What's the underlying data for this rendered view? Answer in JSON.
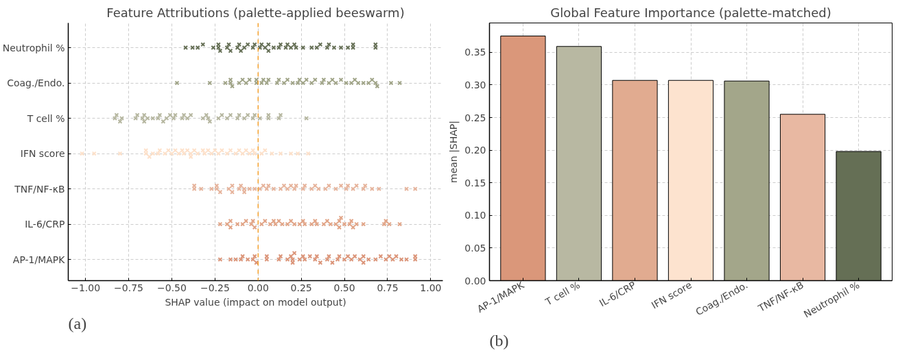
{
  "chart_data": [
    {
      "type": "scatter",
      "title": "Feature Attributions (palette-applied beeswarm)",
      "xlabel": "SHAP value (impact on model output)",
      "annotations": [
        "(a)"
      ],
      "marker": "cross",
      "grid": true,
      "xlim": [
        -1.1,
        1.07
      ],
      "xticks": [
        {
          "value": -1,
          "label": "−1.00"
        },
        {
          "value": -0.75,
          "label": "−0.75"
        },
        {
          "value": -0.5,
          "label": "−0.50"
        },
        {
          "value": -0.25,
          "label": "−0.25"
        },
        {
          "value": 0,
          "label": "0.00"
        },
        {
          "value": 0.25,
          "label": "0.25"
        },
        {
          "value": 0.5,
          "label": "0.50"
        },
        {
          "value": 0.75,
          "label": "0.75"
        },
        {
          "value": 1,
          "label": "1.00"
        }
      ],
      "orientation": "horizontal",
      "categories": [
        "Neutrophil %",
        "Coag./Endo.",
        "T cell %",
        "IFN score",
        "TNF/NF-κB",
        "IL-6/CRP",
        "AP-1/MAPK"
      ],
      "ref_lines": [
        {
          "axis": "x",
          "value": 0,
          "color": "#f5a02a",
          "line_style": "dashed"
        }
      ],
      "series": [
        {
          "color": "#656f55",
          "x": [
            "Neutrophil %",
            "Neutrophil %",
            "Neutrophil %",
            "Neutrophil %",
            "Neutrophil %",
            "Neutrophil %",
            "Neutrophil %",
            "Neutrophil %",
            "Neutrophil %",
            "Neutrophil %",
            "Neutrophil %",
            "Neutrophil %",
            "Neutrophil %",
            "Neutrophil %",
            "Neutrophil %",
            "Neutrophil %",
            "Neutrophil %",
            "Neutrophil %",
            "Neutrophil %",
            "Neutrophil %",
            "Neutrophil %",
            "Neutrophil %",
            "Neutrophil %",
            "Neutrophil %",
            "Neutrophil %",
            "Neutrophil %",
            "Neutrophil %",
            "Neutrophil %",
            "Neutrophil %",
            "Neutrophil %",
            "Neutrophil %",
            "Neutrophil %",
            "Neutrophil %",
            "Neutrophil %",
            "Neutrophil %",
            "Neutrophil %",
            "Neutrophil %",
            "Neutrophil %",
            "Neutrophil %",
            "Neutrophil %",
            "Neutrophil %",
            "Neutrophil %",
            "Neutrophil %",
            "Neutrophil %"
          ],
          "values": [
            -0.42,
            -0.38,
            -0.35,
            -0.32,
            -0.26,
            -0.22,
            -0.18,
            -0.12,
            -0.06,
            -0.03,
            -0.23,
            -0.16,
            -0.11,
            -0.08,
            -0.02,
            -0.23,
            -0.17,
            -0.1,
            0.01,
            0.04,
            0.06,
            0.09,
            0.13,
            0.17,
            0.21,
            0.19,
            0.16,
            0.22,
            0.26,
            0.31,
            0.34,
            0.36,
            0.4,
            0.41,
            0.44,
            0.48,
            0.52,
            0.55,
            0.55,
            0.68,
            0.68,
            0.06,
            0.12,
            0.02
          ]
        },
        {
          "color": "#9fa386",
          "x": [
            "Coag./Endo.",
            "Coag./Endo.",
            "Coag./Endo.",
            "Coag./Endo.",
            "Coag./Endo.",
            "Coag./Endo.",
            "Coag./Endo.",
            "Coag./Endo.",
            "Coag./Endo.",
            "Coag./Endo.",
            "Coag./Endo.",
            "Coag./Endo.",
            "Coag./Endo.",
            "Coag./Endo.",
            "Coag./Endo.",
            "Coag./Endo.",
            "Coag./Endo.",
            "Coag./Endo.",
            "Coag./Endo.",
            "Coag./Endo.",
            "Coag./Endo.",
            "Coag./Endo.",
            "Coag./Endo.",
            "Coag./Endo.",
            "Coag./Endo.",
            "Coag./Endo.",
            "Coag./Endo.",
            "Coag./Endo.",
            "Coag./Endo.",
            "Coag./Endo.",
            "Coag./Endo.",
            "Coag./Endo.",
            "Coag./Endo.",
            "Coag./Endo.",
            "Coag./Endo.",
            "Coag./Endo.",
            "Coag./Endo.",
            "Coag./Endo.",
            "Coag./Endo.",
            "Coag./Endo.",
            "Coag./Endo.",
            "Coag./Endo.",
            "Coag./Endo.",
            "Coag./Endo."
          ],
          "values": [
            -0.47,
            -0.28,
            -0.19,
            -0.16,
            -0.15,
            -0.11,
            -0.16,
            -0.09,
            -0.07,
            -0.05,
            -0.01,
            -0.01,
            0.02,
            0.03,
            0.06,
            0.05,
            0.11,
            0.12,
            0.15,
            0.17,
            0.2,
            0.23,
            0.24,
            0.26,
            0.28,
            0.31,
            0.33,
            0.37,
            0.38,
            0.41,
            0.43,
            0.45,
            0.48,
            0.51,
            0.54,
            0.56,
            0.58,
            0.61,
            0.64,
            0.66,
            0.68,
            0.69,
            0.77,
            0.82
          ]
        },
        {
          "color": "#b5b69f",
          "x": [
            "T cell %",
            "T cell %",
            "T cell %",
            "T cell %",
            "T cell %",
            "T cell %",
            "T cell %",
            "T cell %",
            "T cell %",
            "T cell %",
            "T cell %",
            "T cell %",
            "T cell %",
            "T cell %",
            "T cell %",
            "T cell %",
            "T cell %",
            "T cell %",
            "T cell %",
            "T cell %",
            "T cell %",
            "T cell %",
            "T cell %",
            "T cell %",
            "T cell %",
            "T cell %",
            "T cell %",
            "T cell %",
            "T cell %",
            "T cell %",
            "T cell %",
            "T cell %",
            "T cell %",
            "T cell %",
            "T cell %",
            "T cell %",
            "T cell %",
            "T cell %",
            "T cell %",
            "T cell %",
            "T cell %",
            "T cell %"
          ],
          "values": [
            -0.83,
            -0.82,
            -0.8,
            -0.79,
            -0.71,
            -0.7,
            -0.67,
            -0.66,
            -0.64,
            -0.61,
            -0.58,
            -0.57,
            -0.53,
            -0.51,
            -0.48,
            -0.49,
            -0.43,
            -0.41,
            -0.39,
            -0.32,
            -0.3,
            -0.28,
            -0.29,
            -0.23,
            -0.21,
            -0.18,
            -0.16,
            -0.12,
            -0.11,
            -0.08,
            -0.06,
            -0.03,
            -0.02,
            0.01,
            0.06,
            0.06,
            0.12,
            0.13,
            0.28,
            -0.66,
            -0.55,
            -0.44
          ]
        },
        {
          "color": "#fde0c9",
          "x": [
            "IFN score",
            "IFN score",
            "IFN score",
            "IFN score",
            "IFN score",
            "IFN score",
            "IFN score",
            "IFN score",
            "IFN score",
            "IFN score",
            "IFN score",
            "IFN score",
            "IFN score",
            "IFN score",
            "IFN score",
            "IFN score",
            "IFN score",
            "IFN score",
            "IFN score",
            "IFN score",
            "IFN score",
            "IFN score",
            "IFN score",
            "IFN score",
            "IFN score",
            "IFN score",
            "IFN score",
            "IFN score",
            "IFN score",
            "IFN score",
            "IFN score",
            "IFN score",
            "IFN score",
            "IFN score",
            "IFN score",
            "IFN score",
            "IFN score",
            "IFN score",
            "IFN score",
            "IFN score",
            "IFN score",
            "IFN score",
            "IFN score",
            "IFN score"
          ],
          "values": [
            -1.02,
            -0.95,
            -0.8,
            -0.65,
            -0.65,
            -0.63,
            -0.61,
            -0.58,
            -0.57,
            -0.54,
            -0.52,
            -0.48,
            -0.46,
            -0.44,
            -0.43,
            -0.41,
            -0.39,
            -0.37,
            -0.35,
            -0.32,
            -0.31,
            -0.29,
            -0.27,
            -0.25,
            -0.23,
            -0.21,
            -0.18,
            -0.16,
            -0.13,
            -0.11,
            -0.09,
            -0.07,
            -0.05,
            -0.03,
            -0.02,
            0.02,
            0.04,
            0.08,
            0.13,
            0.19,
            0.23,
            0.29,
            -0.5,
            -0.39
          ]
        },
        {
          "color": "#e6b39b",
          "x": [
            "TNF/NF-κB",
            "TNF/NF-κB",
            "TNF/NF-κB",
            "TNF/NF-κB",
            "TNF/NF-κB",
            "TNF/NF-κB",
            "TNF/NF-κB",
            "TNF/NF-κB",
            "TNF/NF-κB",
            "TNF/NF-κB",
            "TNF/NF-κB",
            "TNF/NF-κB",
            "TNF/NF-κB",
            "TNF/NF-κB",
            "TNF/NF-κB",
            "TNF/NF-κB",
            "TNF/NF-κB",
            "TNF/NF-κB",
            "TNF/NF-κB",
            "TNF/NF-κB",
            "TNF/NF-κB",
            "TNF/NF-κB",
            "TNF/NF-κB",
            "TNF/NF-κB",
            "TNF/NF-κB",
            "TNF/NF-κB",
            "TNF/NF-κB",
            "TNF/NF-κB",
            "TNF/NF-κB",
            "TNF/NF-κB",
            "TNF/NF-κB",
            "TNF/NF-κB",
            "TNF/NF-κB",
            "TNF/NF-κB",
            "TNF/NF-κB",
            "TNF/NF-κB",
            "TNF/NF-κB",
            "TNF/NF-κB",
            "TNF/NF-κB",
            "TNF/NF-κB",
            "TNF/NF-κB",
            "TNF/NF-κB",
            "TNF/NF-κB",
            "TNF/NF-κB",
            "TNF/NF-κB",
            "TNF/NF-κB"
          ],
          "values": [
            -0.37,
            -0.37,
            -0.27,
            -0.33,
            -0.24,
            -0.24,
            -0.22,
            -0.17,
            -0.15,
            -0.15,
            -0.11,
            -0.1,
            -0.08,
            -0.08,
            -0.05,
            -0.02,
            0.01,
            0.03,
            0.05,
            0.06,
            0.09,
            0.13,
            0.15,
            0.17,
            0.19,
            0.21,
            0.22,
            0.26,
            0.27,
            0.31,
            0.33,
            0.35,
            0.39,
            0.41,
            0.45,
            0.48,
            0.51,
            0.52,
            0.55,
            0.57,
            0.61,
            0.66,
            0.7,
            0.86,
            0.91,
            0.62
          ]
        },
        {
          "color": "#e1a385",
          "x": [
            "IL-6/CRP",
            "IL-6/CRP",
            "IL-6/CRP",
            "IL-6/CRP",
            "IL-6/CRP",
            "IL-6/CRP",
            "IL-6/CRP",
            "IL-6/CRP",
            "IL-6/CRP",
            "IL-6/CRP",
            "IL-6/CRP",
            "IL-6/CRP",
            "IL-6/CRP",
            "IL-6/CRP",
            "IL-6/CRP",
            "IL-6/CRP",
            "IL-6/CRP",
            "IL-6/CRP",
            "IL-6/CRP",
            "IL-6/CRP",
            "IL-6/CRP",
            "IL-6/CRP",
            "IL-6/CRP",
            "IL-6/CRP",
            "IL-6/CRP",
            "IL-6/CRP",
            "IL-6/CRP",
            "IL-6/CRP",
            "IL-6/CRP",
            "IL-6/CRP",
            "IL-6/CRP",
            "IL-6/CRP",
            "IL-6/CRP",
            "IL-6/CRP",
            "IL-6/CRP",
            "IL-6/CRP",
            "IL-6/CRP",
            "IL-6/CRP",
            "IL-6/CRP",
            "IL-6/CRP",
            "IL-6/CRP",
            "IL-6/CRP",
            "IL-6/CRP"
          ],
          "values": [
            -0.22,
            -0.18,
            -0.16,
            -0.16,
            -0.12,
            -0.09,
            -0.07,
            -0.04,
            -0.03,
            -0.02,
            0.02,
            0.04,
            0.07,
            0.09,
            0.1,
            0.12,
            0.14,
            0.17,
            0.19,
            0.21,
            0.24,
            0.26,
            0.27,
            0.31,
            0.33,
            0.34,
            0.38,
            0.4,
            0.42,
            0.45,
            0.47,
            0.48,
            0.5,
            0.53,
            0.55,
            0.57,
            0.61,
            0.73,
            0.74,
            0.76,
            0.82,
            0.47,
            0.54
          ]
        },
        {
          "color": "#db9478",
          "x": [
            "AP-1/MAPK",
            "AP-1/MAPK",
            "AP-1/MAPK",
            "AP-1/MAPK",
            "AP-1/MAPK",
            "AP-1/MAPK",
            "AP-1/MAPK",
            "AP-1/MAPK",
            "AP-1/MAPK",
            "AP-1/MAPK",
            "AP-1/MAPK",
            "AP-1/MAPK",
            "AP-1/MAPK",
            "AP-1/MAPK",
            "AP-1/MAPK",
            "AP-1/MAPK",
            "AP-1/MAPK",
            "AP-1/MAPK",
            "AP-1/MAPK",
            "AP-1/MAPK",
            "AP-1/MAPK",
            "AP-1/MAPK",
            "AP-1/MAPK",
            "AP-1/MAPK",
            "AP-1/MAPK",
            "AP-1/MAPK",
            "AP-1/MAPK",
            "AP-1/MAPK",
            "AP-1/MAPK",
            "AP-1/MAPK",
            "AP-1/MAPK",
            "AP-1/MAPK",
            "AP-1/MAPK",
            "AP-1/MAPK",
            "AP-1/MAPK",
            "AP-1/MAPK",
            "AP-1/MAPK",
            "AP-1/MAPK",
            "AP-1/MAPK",
            "AP-1/MAPK",
            "AP-1/MAPK",
            "AP-1/MAPK",
            "AP-1/MAPK",
            "AP-1/MAPK",
            "AP-1/MAPK",
            "AP-1/MAPK",
            "AP-1/MAPK",
            "AP-1/MAPK"
          ],
          "values": [
            -0.22,
            -0.16,
            -0.13,
            -0.1,
            -0.09,
            -0.06,
            -0.03,
            -0.02,
            -0.01,
            0.05,
            0.05,
            0.12,
            0.13,
            0.17,
            0.19,
            0.2,
            0.21,
            0.24,
            0.26,
            0.27,
            0.3,
            0.33,
            0.34,
            0.36,
            0.4,
            0.41,
            0.43,
            0.46,
            0.47,
            0.5,
            0.52,
            0.54,
            0.56,
            0.59,
            0.61,
            0.64,
            0.68,
            0.71,
            0.74,
            0.76,
            0.78,
            0.8,
            0.83,
            0.86,
            0.91,
            0.91,
            0.61,
            0.2
          ]
        }
      ]
    },
    {
      "type": "bar",
      "title": "Global Feature Importance (palette-matched)",
      "ylabel": "mean |SHAP|",
      "annotations": [
        "(b)"
      ],
      "grid": true,
      "categories": [
        "AP-1/MAPK",
        "T cell %",
        "IL-6/CRP",
        "IFN score",
        "Coag./Endo.",
        "TNF/NF-κB",
        "Neutrophil %"
      ],
      "values": [
        0.375,
        0.359,
        0.307,
        0.307,
        0.306,
        0.255,
        0.198
      ],
      "colors": [
        "#da977a",
        "#b8b8a2",
        "#e1ab90",
        "#fde3cf",
        "#a3a68a",
        "#e8b8a2",
        "#656f55"
      ],
      "ylim": [
        0,
        0.395
      ],
      "yticks": [
        {
          "value": 0,
          "label": "0.00"
        },
        {
          "value": 0.05,
          "label": "0.05"
        },
        {
          "value": 0.1,
          "label": "0.10"
        },
        {
          "value": 0.15,
          "label": "0.15"
        },
        {
          "value": 0.2,
          "label": "0.20"
        },
        {
          "value": 0.25,
          "label": "0.25"
        },
        {
          "value": 0.3,
          "label": "0.30"
        },
        {
          "value": 0.35,
          "label": "0.35"
        }
      ]
    }
  ]
}
